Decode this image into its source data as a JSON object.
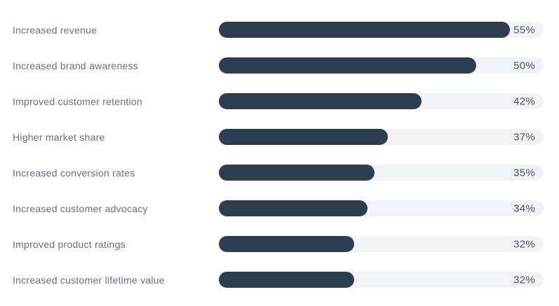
{
  "chart_data": {
    "type": "bar",
    "orientation": "horizontal",
    "title": "",
    "categories": [
      "Increased revenue",
      "Increased brand awareness",
      "Improved customer retention",
      "Higher market share",
      "Increased conversion rates",
      "Increased customer advocacy",
      "Improved product ratings",
      "Increased customer lifetime value"
    ],
    "values": [
      55,
      50,
      42,
      37,
      35,
      34,
      32,
      32
    ],
    "value_labels": [
      "55%",
      "50%",
      "42%",
      "37%",
      "35%",
      "34%",
      "32%",
      "32%"
    ],
    "value_suffix": "%",
    "xlabel": "",
    "ylabel": "",
    "xlim": [
      12,
      60
    ],
    "grid": false,
    "legend": false
  },
  "style": {
    "bar_color": "#2d3e50",
    "track_color": "#f1f3f6",
    "label_color": "#66707f",
    "value_color": "#4a5565",
    "background": "#ffffff"
  }
}
